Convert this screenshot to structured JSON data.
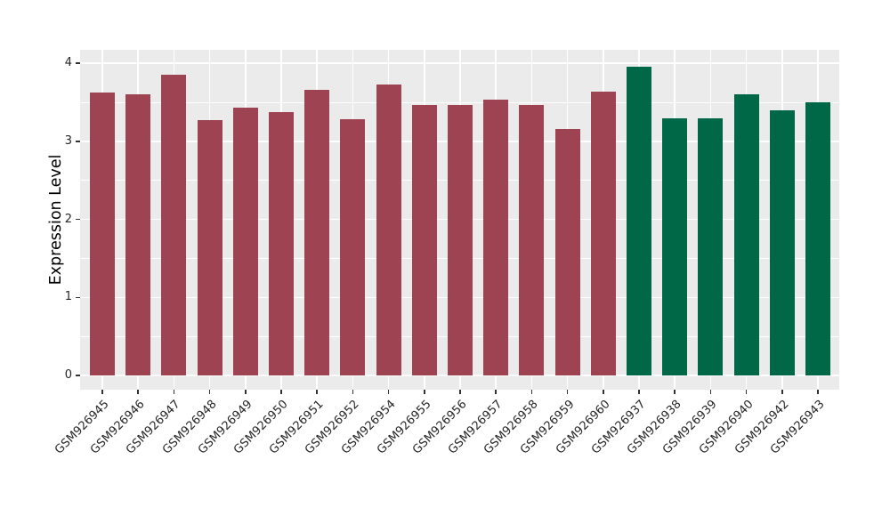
{
  "chart_data": {
    "type": "bar",
    "title": "",
    "xlabel": "",
    "ylabel": "Expression Level",
    "categories": [
      "GSM926945",
      "GSM926946",
      "GSM926947",
      "GSM926948",
      "GSM926949",
      "GSM926950",
      "GSM926951",
      "GSM926952",
      "GSM926954",
      "GSM926955",
      "GSM926956",
      "GSM926957",
      "GSM926958",
      "GSM926959",
      "GSM926960",
      "GSM926937",
      "GSM926938",
      "GSM926939",
      "GSM926940",
      "GSM926942",
      "GSM926943"
    ],
    "values": [
      3.63,
      3.6,
      3.85,
      3.27,
      3.43,
      3.37,
      3.66,
      3.28,
      3.73,
      3.47,
      3.47,
      3.53,
      3.47,
      3.16,
      3.64,
      3.96,
      3.29,
      3.29,
      3.6,
      3.4,
      3.5
    ],
    "bar_group": [
      "group1",
      "group1",
      "group1",
      "group1",
      "group1",
      "group1",
      "group1",
      "group1",
      "group1",
      "group1",
      "group1",
      "group1",
      "group1",
      "group1",
      "group1",
      "group2",
      "group2",
      "group2",
      "group2",
      "group2",
      "group2"
    ],
    "group_colors": {
      "group1": "#9E4351",
      "group2": "#006747"
    },
    "y_ticks": [
      0,
      1,
      2,
      3,
      4
    ],
    "y_minor_ticks": [
      0.5,
      1.5,
      2.5,
      3.5
    ],
    "ylim": [
      -0.18,
      4.17
    ],
    "grid": "on",
    "legend": "none",
    "panel_bg": "#EBEBEB",
    "grid_color": "#FFFFFF",
    "tick_color": "#333333"
  }
}
